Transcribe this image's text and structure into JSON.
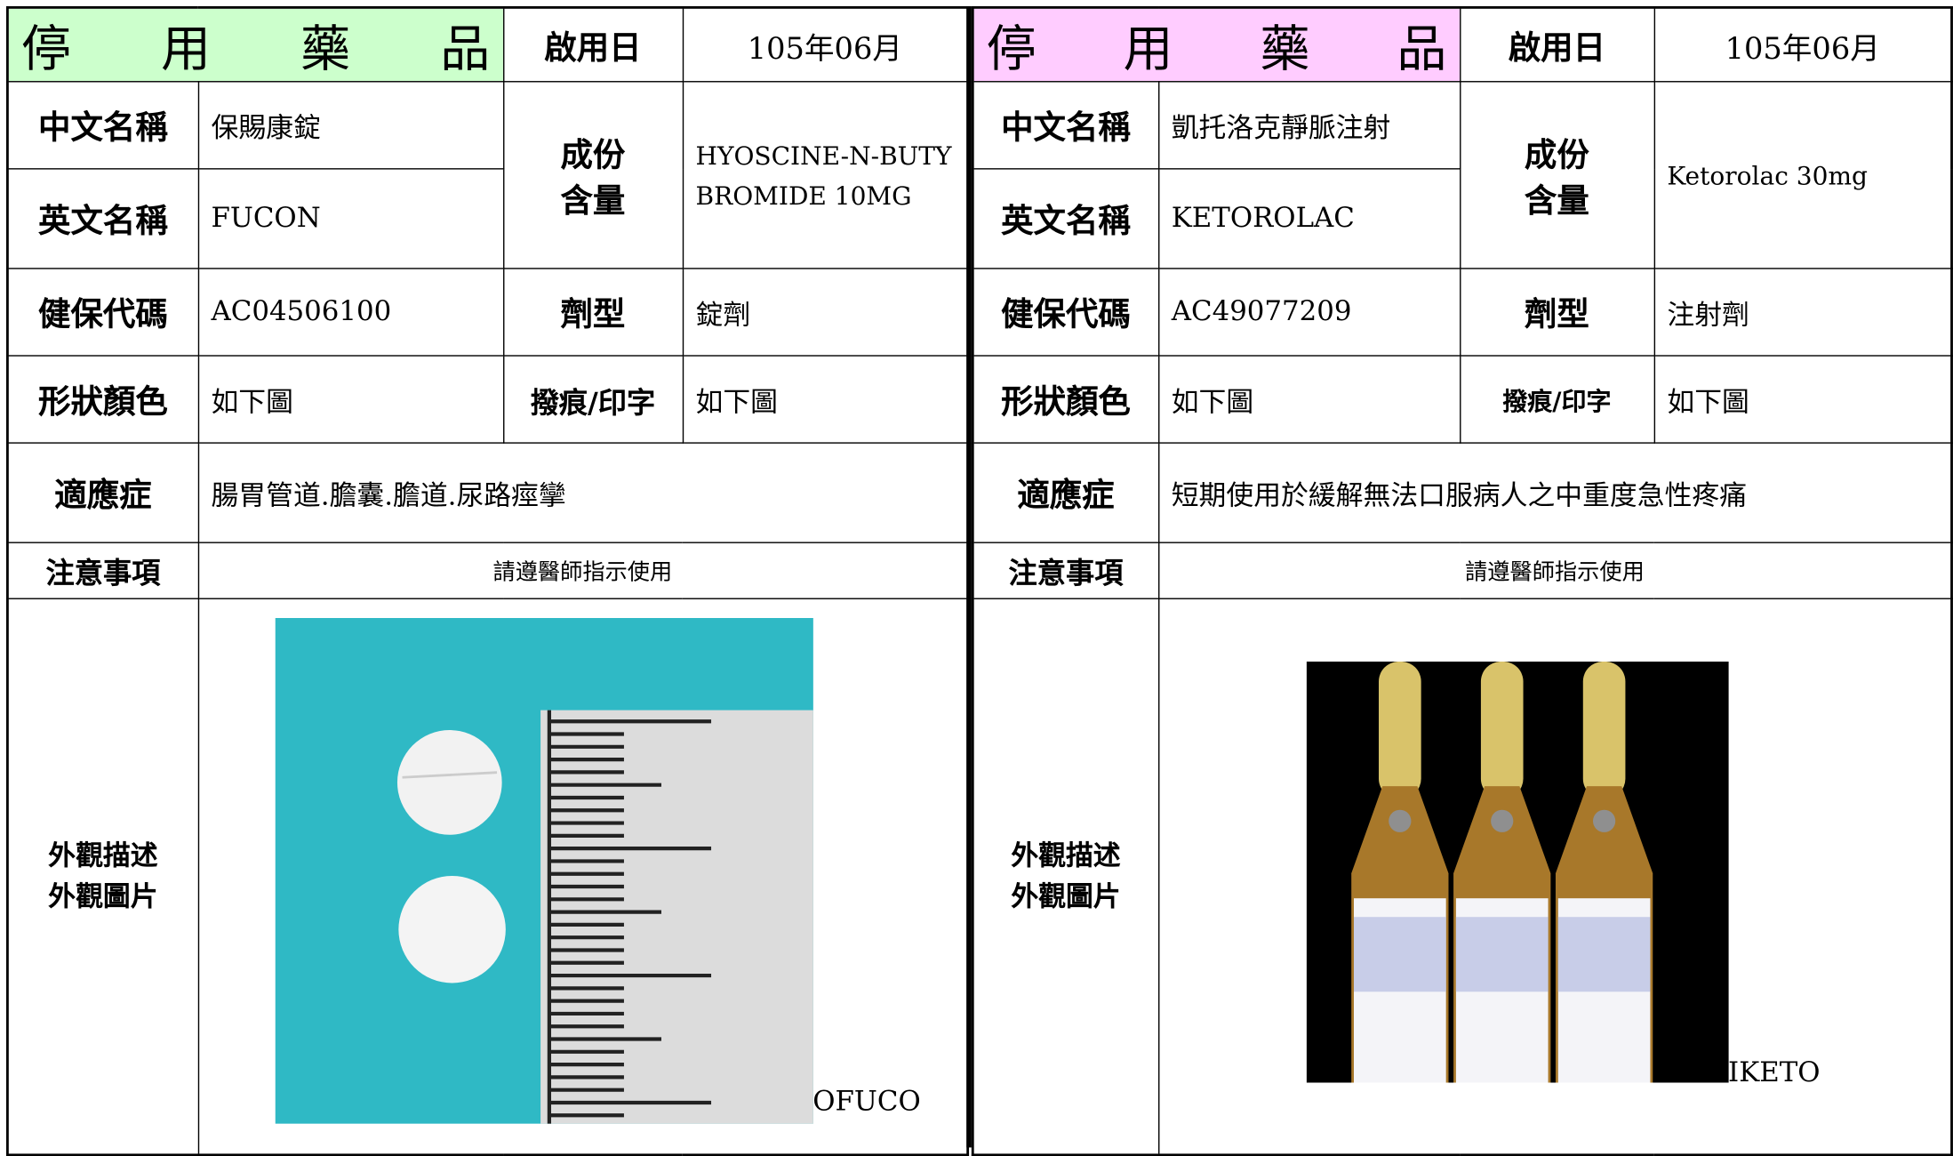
{
  "cards": [
    {
      "header": {
        "title": "停用藥品",
        "title_background": "#ccffcc",
        "start_label": "啟用日",
        "start_date": "105年06月"
      },
      "chinese_name": {
        "label": "中文名稱",
        "value": "保賜康錠"
      },
      "english_name": {
        "label": "英文名稱",
        "value": "FUCON"
      },
      "ingredient": {
        "label": "成份\n含量",
        "value": "HYOSCINE-N-BUTYBROMIDE  10MG"
      },
      "code": {
        "label": "健保代碼",
        "value": "AC04506100"
      },
      "dosage_form": {
        "label": "劑型",
        "value": "錠劑"
      },
      "shape_color": {
        "label": "形狀顏色",
        "value": "如下圖"
      },
      "imprint": {
        "label": "撥痕/印字",
        "value": "如下圖"
      },
      "indication": {
        "label": "適應症",
        "value": "腸胃管道.膽囊.膽道.尿路痙攣"
      },
      "notes": {
        "label": "注意事項",
        "value": "請遵醫師指示使用"
      },
      "appearance": {
        "label": "外觀描述\n外觀圖片",
        "caption": "OFUCO"
      }
    },
    {
      "header": {
        "title": "停用藥品",
        "title_background": "#ffccff",
        "start_label": "啟用日",
        "start_date": "105年06月"
      },
      "chinese_name": {
        "label": "中文名稱",
        "value": "凱托洛克靜脈注射"
      },
      "english_name": {
        "label": "英文名稱",
        "value": "KETOROLAC"
      },
      "ingredient": {
        "label": "成份\n含量",
        "value": "Ketorolac 30mg"
      },
      "code": {
        "label": "健保代碼",
        "value": "AC49077209"
      },
      "dosage_form": {
        "label": "劑型",
        "value": "注射劑"
      },
      "shape_color": {
        "label": "形狀顏色",
        "value": "如下圖"
      },
      "imprint": {
        "label": "撥痕/印字",
        "value": "如下圖"
      },
      "indication": {
        "label": "適應症",
        "value": "短期使用於緩解無法口服病人之中重度急性疼痛"
      },
      "notes": {
        "label": "注意事項",
        "value": "請遵醫師指示使用"
      },
      "appearance": {
        "label": "外觀描述\n外觀圖片",
        "caption": "IKETO"
      }
    }
  ]
}
